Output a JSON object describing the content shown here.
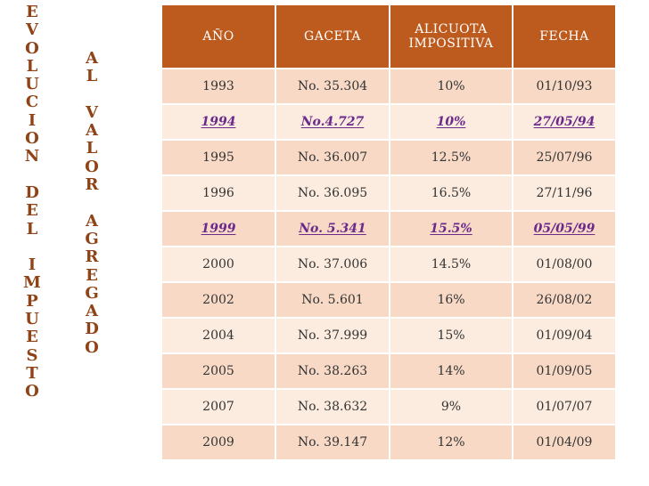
{
  "title_column_1": [
    "E",
    "V",
    "O",
    "L",
    "U",
    "C",
    "I",
    "O",
    "N",
    "",
    "D",
    "E",
    "L",
    "",
    "I",
    "M",
    "P",
    "U",
    "E",
    "S",
    "T",
    "O"
  ],
  "title_column_2": [
    "A",
    "L",
    "",
    "V",
    "A",
    "L",
    "O",
    "R",
    "",
    "A",
    "G",
    "R",
    "E",
    "G",
    "A",
    "D",
    "O"
  ],
  "table": {
    "headers": [
      "AÑO",
      "GACETA",
      "ALICUOTA IMPOSITIVA",
      "FECHA"
    ],
    "rows": [
      {
        "year": "1993",
        "gaceta": "No. 35.304",
        "alicuota": "10%",
        "fecha": "01/10/93",
        "highlight": false
      },
      {
        "year": "1994",
        "gaceta": "No.4.727",
        "alicuota": "10%",
        "fecha": "27/05/94",
        "highlight": true
      },
      {
        "year": "1995",
        "gaceta": "No. 36.007",
        "alicuota": "12.5%",
        "fecha": "25/07/96",
        "highlight": false
      },
      {
        "year": "1996",
        "gaceta": "No. 36.095",
        "alicuota": "16.5%",
        "fecha": "27/11/96",
        "highlight": false
      },
      {
        "year": "1999",
        "gaceta": "No. 5.341",
        "alicuota": "15.5%",
        "fecha": "05/05/99",
        "highlight": true
      },
      {
        "year": "2000",
        "gaceta": "No. 37.006",
        "alicuota": "14.5%",
        "fecha": "01/08/00",
        "highlight": false
      },
      {
        "year": "2002",
        "gaceta": "No. 5.601",
        "alicuota": "16%",
        "fecha": "26/08/02",
        "highlight": false
      },
      {
        "year": "2004",
        "gaceta": "No. 37.999",
        "alicuota": "15%",
        "fecha": "01/09/04",
        "highlight": false
      },
      {
        "year": "2005",
        "gaceta": "No. 38.263",
        "alicuota": "14%",
        "fecha": "01/09/05",
        "highlight": false
      },
      {
        "year": "2007",
        "gaceta": "No.  38.632",
        "alicuota": "9%",
        "fecha": "01/07/07",
        "highlight": false
      },
      {
        "year": "2009",
        "gaceta": "No. 39.147",
        "alicuota": "12%",
        "fecha": "01/04/09",
        "highlight": false
      }
    ]
  },
  "colors": {
    "title": "#8f4418",
    "header_bg": "#bc5b1d",
    "row_dark": "#f7d9c6",
    "row_light": "#fcecdf",
    "highlight_text": "#6b2a8a"
  }
}
